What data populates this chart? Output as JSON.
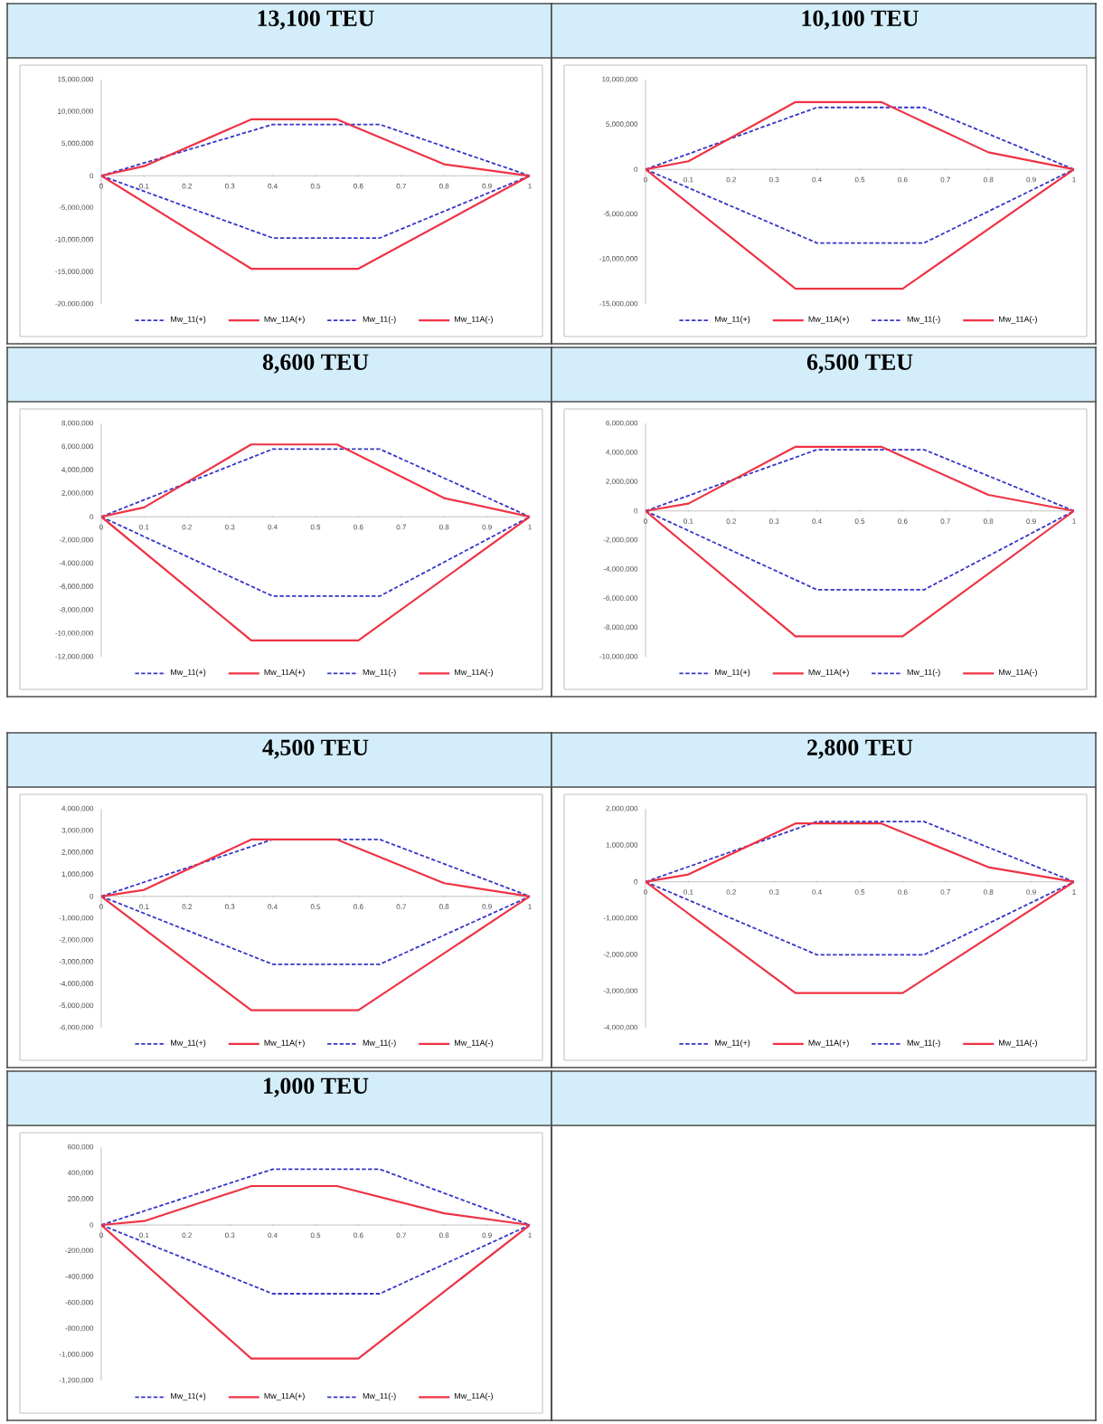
{
  "chart_data": [
    {
      "type": "line",
      "title": "13,100 TEU",
      "xlim": [
        0,
        1
      ],
      "xticks": [
        0,
        0.1,
        0.2,
        0.3,
        0.4,
        0.5,
        0.6,
        0.7,
        0.8,
        0.9,
        1
      ],
      "ylim": [
        -20000000,
        15000000
      ],
      "yticks": [
        {
          "value": -20000000,
          "label": "-20,000,000"
        },
        {
          "value": -15000000,
          "label": "-15,000,000"
        },
        {
          "value": -10000000,
          "label": "-10,000,000"
        },
        {
          "value": -5000000,
          "label": "-5,000,000"
        },
        {
          "value": 0,
          "label": "0"
        },
        {
          "value": 5000000,
          "label": "5,000,000"
        },
        {
          "value": 10000000,
          "label": "10,000,000"
        },
        {
          "value": 15000000,
          "label": "15,000,000"
        }
      ],
      "legend": "bottom",
      "marker": "none",
      "series": [
        {
          "name": "Mw_11(+)",
          "color": "#3535c8",
          "line_style": "dashed",
          "x": [
            0,
            0.4,
            0.65,
            1
          ],
          "values": [
            0,
            8000000,
            8000000,
            0
          ]
        },
        {
          "name": "Mw_11A(+)",
          "color": "#ee3344",
          "line_style": "solid",
          "x": [
            0,
            0.1,
            0.35,
            0.55,
            0.8,
            1
          ],
          "values": [
            0,
            1500000,
            8800000,
            8800000,
            1800000,
            0
          ]
        },
        {
          "name": "Mw_11(-)",
          "color": "#3535c8",
          "line_style": "dashed",
          "x": [
            0,
            0.4,
            0.65,
            1
          ],
          "values": [
            0,
            -9700000,
            -9700000,
            0
          ]
        },
        {
          "name": "Mw_11A(-)",
          "color": "#ee3344",
          "line_style": "solid",
          "x": [
            0,
            0.35,
            0.6,
            1
          ],
          "values": [
            0,
            -14500000,
            -14500000,
            0
          ]
        }
      ]
    },
    {
      "type": "line",
      "title": "10,100 TEU",
      "xlim": [
        0,
        1
      ],
      "xticks": [
        0,
        0.1,
        0.2,
        0.3,
        0.4,
        0.5,
        0.6,
        0.7,
        0.8,
        0.9,
        1
      ],
      "ylim": [
        -15000000,
        10000000
      ],
      "yticks": [
        {
          "value": -15000000,
          "label": "-15,000,000"
        },
        {
          "value": -10000000,
          "label": "-10,000,000"
        },
        {
          "value": -5000000,
          "label": "-5,000,000"
        },
        {
          "value": 0,
          "label": "0"
        },
        {
          "value": 5000000,
          "label": "5,000,000"
        },
        {
          "value": 10000000,
          "label": "10,000,000"
        }
      ],
      "legend": "bottom",
      "marker": "none",
      "series": [
        {
          "name": "Mw_11(+)",
          "color": "#3535c8",
          "line_style": "dashed",
          "x": [
            0,
            0.4,
            0.65,
            1
          ],
          "values": [
            0,
            6900000,
            6900000,
            0
          ]
        },
        {
          "name": "Mw_11A(+)",
          "color": "#ee3344",
          "line_style": "solid",
          "x": [
            0,
            0.1,
            0.35,
            0.55,
            0.8,
            1
          ],
          "values": [
            0,
            900000,
            7500000,
            7500000,
            1900000,
            0
          ]
        },
        {
          "name": "Mw_11(-)",
          "color": "#3535c8",
          "line_style": "dashed",
          "x": [
            0,
            0.4,
            0.65,
            1
          ],
          "values": [
            0,
            -8200000,
            -8200000,
            0
          ]
        },
        {
          "name": "Mw_11A(-)",
          "color": "#ee3344",
          "line_style": "solid",
          "x": [
            0,
            0.35,
            0.6,
            1
          ],
          "values": [
            0,
            -13300000,
            -13300000,
            0
          ]
        }
      ]
    },
    {
      "type": "line",
      "title": "8,600 TEU",
      "xlim": [
        0,
        1
      ],
      "xticks": [
        0,
        0.1,
        0.2,
        0.3,
        0.4,
        0.5,
        0.6,
        0.7,
        0.8,
        0.9,
        1
      ],
      "ylim": [
        -12000000,
        8000000
      ],
      "yticks": [
        {
          "value": -12000000,
          "label": "-12,000,000"
        },
        {
          "value": -10000000,
          "label": "-10,000,000"
        },
        {
          "value": -8000000,
          "label": "-8,000,000"
        },
        {
          "value": -6000000,
          "label": "-6,000,000"
        },
        {
          "value": -4000000,
          "label": "-4,000,000"
        },
        {
          "value": -2000000,
          "label": "-2,000,000"
        },
        {
          "value": 0,
          "label": "0"
        },
        {
          "value": 2000000,
          "label": "2,000,000"
        },
        {
          "value": 4000000,
          "label": "4,000,000"
        },
        {
          "value": 6000000,
          "label": "6,000,000"
        },
        {
          "value": 8000000,
          "label": "8,000,000"
        }
      ],
      "legend": "bottom",
      "marker": "none",
      "series": [
        {
          "name": "Mw_11(+)",
          "color": "#3535c8",
          "line_style": "dashed",
          "x": [
            0,
            0.4,
            0.65,
            1
          ],
          "values": [
            0,
            5800000,
            5800000,
            0
          ]
        },
        {
          "name": "Mw_11A(+)",
          "color": "#ee3344",
          "line_style": "solid",
          "x": [
            0,
            0.1,
            0.35,
            0.55,
            0.8,
            1
          ],
          "values": [
            0,
            800000,
            6200000,
            6200000,
            1600000,
            0
          ]
        },
        {
          "name": "Mw_11(-)",
          "color": "#3535c8",
          "line_style": "dashed",
          "x": [
            0,
            0.4,
            0.65,
            1
          ],
          "values": [
            0,
            -6800000,
            -6800000,
            0
          ]
        },
        {
          "name": "Mw_11A(-)",
          "color": "#ee3344",
          "line_style": "solid",
          "x": [
            0,
            0.35,
            0.6,
            1
          ],
          "values": [
            0,
            -10600000,
            -10600000,
            0
          ]
        }
      ]
    },
    {
      "type": "line",
      "title": "6,500 TEU",
      "xlim": [
        0,
        1
      ],
      "xticks": [
        0,
        0.1,
        0.2,
        0.3,
        0.4,
        0.5,
        0.6,
        0.7,
        0.8,
        0.9,
        1
      ],
      "ylim": [
        -10000000,
        6000000
      ],
      "yticks": [
        {
          "value": -10000000,
          "label": "-10,000,000"
        },
        {
          "value": -8000000,
          "label": "-8,000,000"
        },
        {
          "value": -6000000,
          "label": "-6,000,000"
        },
        {
          "value": -4000000,
          "label": "-4,000,000"
        },
        {
          "value": -2000000,
          "label": "-2,000,000"
        },
        {
          "value": 0,
          "label": "0"
        },
        {
          "value": 2000000,
          "label": "2,000,000"
        },
        {
          "value": 4000000,
          "label": "4,000,000"
        },
        {
          "value": 6000000,
          "label": "6,000,000"
        }
      ],
      "legend": "bottom",
      "marker": "none",
      "series": [
        {
          "name": "Mw_11(+)",
          "color": "#3535c8",
          "line_style": "dashed",
          "x": [
            0,
            0.4,
            0.65,
            1
          ],
          "values": [
            0,
            4200000,
            4200000,
            0
          ]
        },
        {
          "name": "Mw_11A(+)",
          "color": "#ee3344",
          "line_style": "solid",
          "x": [
            0,
            0.1,
            0.35,
            0.55,
            0.8,
            1
          ],
          "values": [
            0,
            500000,
            4400000,
            4400000,
            1100000,
            0
          ]
        },
        {
          "name": "Mw_11(-)",
          "color": "#3535c8",
          "line_style": "dashed",
          "x": [
            0,
            0.4,
            0.65,
            1
          ],
          "values": [
            0,
            -5400000,
            -5400000,
            0
          ]
        },
        {
          "name": "Mw_11A(-)",
          "color": "#ee3344",
          "line_style": "solid",
          "x": [
            0,
            0.35,
            0.6,
            1
          ],
          "values": [
            0,
            -8600000,
            -8600000,
            0
          ]
        }
      ]
    },
    {
      "type": "line",
      "title": "4,500 TEU",
      "xlim": [
        0,
        1
      ],
      "xticks": [
        0,
        0.1,
        0.2,
        0.3,
        0.4,
        0.5,
        0.6,
        0.7,
        0.8,
        0.9,
        1
      ],
      "ylim": [
        -6000000,
        4000000
      ],
      "yticks": [
        {
          "value": -6000000,
          "label": "-6,000,000"
        },
        {
          "value": -5000000,
          "label": "-5,000,000"
        },
        {
          "value": -4000000,
          "label": "-4,000,000"
        },
        {
          "value": -3000000,
          "label": "-3,000,000"
        },
        {
          "value": -2000000,
          "label": "-2,000,000"
        },
        {
          "value": -1000000,
          "label": "-1,000,000"
        },
        {
          "value": 0,
          "label": "0"
        },
        {
          "value": 1000000,
          "label": "1,000,000"
        },
        {
          "value": 2000000,
          "label": "2,000,000"
        },
        {
          "value": 3000000,
          "label": "3,000,000"
        },
        {
          "value": 4000000,
          "label": "4,000,000"
        }
      ],
      "legend": "bottom",
      "marker": "none",
      "series": [
        {
          "name": "Mw_11(+)",
          "color": "#3535c8",
          "line_style": "dashed",
          "x": [
            0,
            0.4,
            0.65,
            1
          ],
          "values": [
            0,
            2600000,
            2600000,
            0
          ]
        },
        {
          "name": "Mw_11A(+)",
          "color": "#ee3344",
          "line_style": "solid",
          "x": [
            0,
            0.1,
            0.35,
            0.55,
            0.8,
            1
          ],
          "values": [
            0,
            300000,
            2600000,
            2600000,
            600000,
            0
          ]
        },
        {
          "name": "Mw_11(-)",
          "color": "#3535c8",
          "line_style": "dashed",
          "x": [
            0,
            0.4,
            0.65,
            1
          ],
          "values": [
            0,
            -3100000,
            -3100000,
            0
          ]
        },
        {
          "name": "Mw_11A(-)",
          "color": "#ee3344",
          "line_style": "solid",
          "x": [
            0,
            0.35,
            0.6,
            1
          ],
          "values": [
            0,
            -5200000,
            -5200000,
            0
          ]
        }
      ]
    },
    {
      "type": "line",
      "title": "2,800 TEU",
      "xlim": [
        0,
        1
      ],
      "xticks": [
        0,
        0.1,
        0.2,
        0.3,
        0.4,
        0.5,
        0.6,
        0.7,
        0.8,
        0.9,
        1
      ],
      "ylim": [
        -4000000,
        2000000
      ],
      "yticks": [
        {
          "value": -4000000,
          "label": "-4,000,000"
        },
        {
          "value": -3000000,
          "label": "-3,000,000"
        },
        {
          "value": -2000000,
          "label": "-2,000,000"
        },
        {
          "value": -1000000,
          "label": "-1,000,000"
        },
        {
          "value": 0,
          "label": "0"
        },
        {
          "value": 1000000,
          "label": "1,000,000"
        },
        {
          "value": 2000000,
          "label": "2,000,000"
        }
      ],
      "legend": "bottom",
      "marker": "none",
      "series": [
        {
          "name": "Mw_11(+)",
          "color": "#3535c8",
          "line_style": "dashed",
          "x": [
            0,
            0.4,
            0.65,
            1
          ],
          "values": [
            0,
            1650000,
            1650000,
            0
          ]
        },
        {
          "name": "Mw_11A(+)",
          "color": "#ee3344",
          "line_style": "solid",
          "x": [
            0,
            0.1,
            0.35,
            0.55,
            0.8,
            1
          ],
          "values": [
            0,
            200000,
            1600000,
            1600000,
            400000,
            0
          ]
        },
        {
          "name": "Mw_11(-)",
          "color": "#3535c8",
          "line_style": "dashed",
          "x": [
            0,
            0.4,
            0.65,
            1
          ],
          "values": [
            0,
            -2000000,
            -2000000,
            0
          ]
        },
        {
          "name": "Mw_11A(-)",
          "color": "#ee3344",
          "line_style": "solid",
          "x": [
            0,
            0.35,
            0.6,
            1
          ],
          "values": [
            0,
            -3050000,
            -3050000,
            0
          ]
        }
      ]
    },
    {
      "type": "line",
      "title": "1,000 TEU",
      "xlim": [
        0,
        1
      ],
      "xticks": [
        0,
        0.1,
        0.2,
        0.3,
        0.4,
        0.5,
        0.6,
        0.7,
        0.8,
        0.9,
        1
      ],
      "ylim": [
        -1200000,
        600000
      ],
      "yticks": [
        {
          "value": -1200000,
          "label": "-1,200,000"
        },
        {
          "value": -1000000,
          "label": "-1,000,000"
        },
        {
          "value": -800000,
          "label": "-800,000"
        },
        {
          "value": -600000,
          "label": "-600,000"
        },
        {
          "value": -400000,
          "label": "-400,000"
        },
        {
          "value": -200000,
          "label": "-200,000"
        },
        {
          "value": 0,
          "label": "0"
        },
        {
          "value": 200000,
          "label": "200,000"
        },
        {
          "value": 400000,
          "label": "400,000"
        },
        {
          "value": 600000,
          "label": "600,000"
        }
      ],
      "legend": "bottom",
      "marker": "none",
      "series": [
        {
          "name": "Mw_11(+)",
          "color": "#3535c8",
          "line_style": "dashed",
          "x": [
            0,
            0.4,
            0.65,
            1
          ],
          "values": [
            0,
            430000,
            430000,
            0
          ]
        },
        {
          "name": "Mw_11A(+)",
          "color": "#ee3344",
          "line_style": "solid",
          "x": [
            0,
            0.1,
            0.35,
            0.55,
            0.8,
            1
          ],
          "values": [
            0,
            30000,
            300000,
            300000,
            90000,
            0
          ]
        },
        {
          "name": "Mw_11(-)",
          "color": "#3535c8",
          "line_style": "dashed",
          "x": [
            0,
            0.4,
            0.65,
            1
          ],
          "values": [
            0,
            -530000,
            -530000,
            0
          ]
        },
        {
          "name": "Mw_11A(-)",
          "color": "#ee3344",
          "line_style": "solid",
          "x": [
            0,
            0.35,
            0.6,
            1
          ],
          "values": [
            0,
            -1030000,
            -1030000,
            0
          ]
        }
      ]
    }
  ]
}
